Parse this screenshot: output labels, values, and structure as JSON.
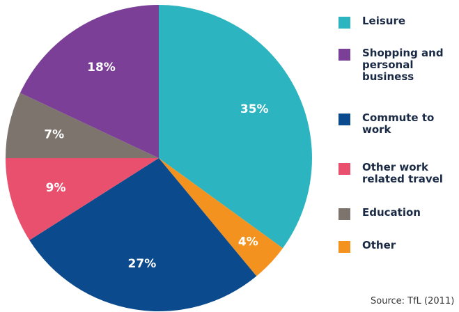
{
  "chart_data": {
    "type": "pie",
    "categories": [
      "Leisure",
      "Shopping and personal business",
      "Commute to work",
      "Other work related travel",
      "Education",
      "Other"
    ],
    "values": [
      35,
      18,
      27,
      9,
      7,
      4
    ],
    "value_labels": [
      "35%",
      "18%",
      "27%",
      "9%",
      "7%",
      "4%"
    ],
    "colors": [
      "#2cb5c0",
      "#7b3f98",
      "#0b4a8c",
      "#e8506e",
      "#7d746e",
      "#f4921f"
    ],
    "source": "Source: TfL (2011)"
  }
}
